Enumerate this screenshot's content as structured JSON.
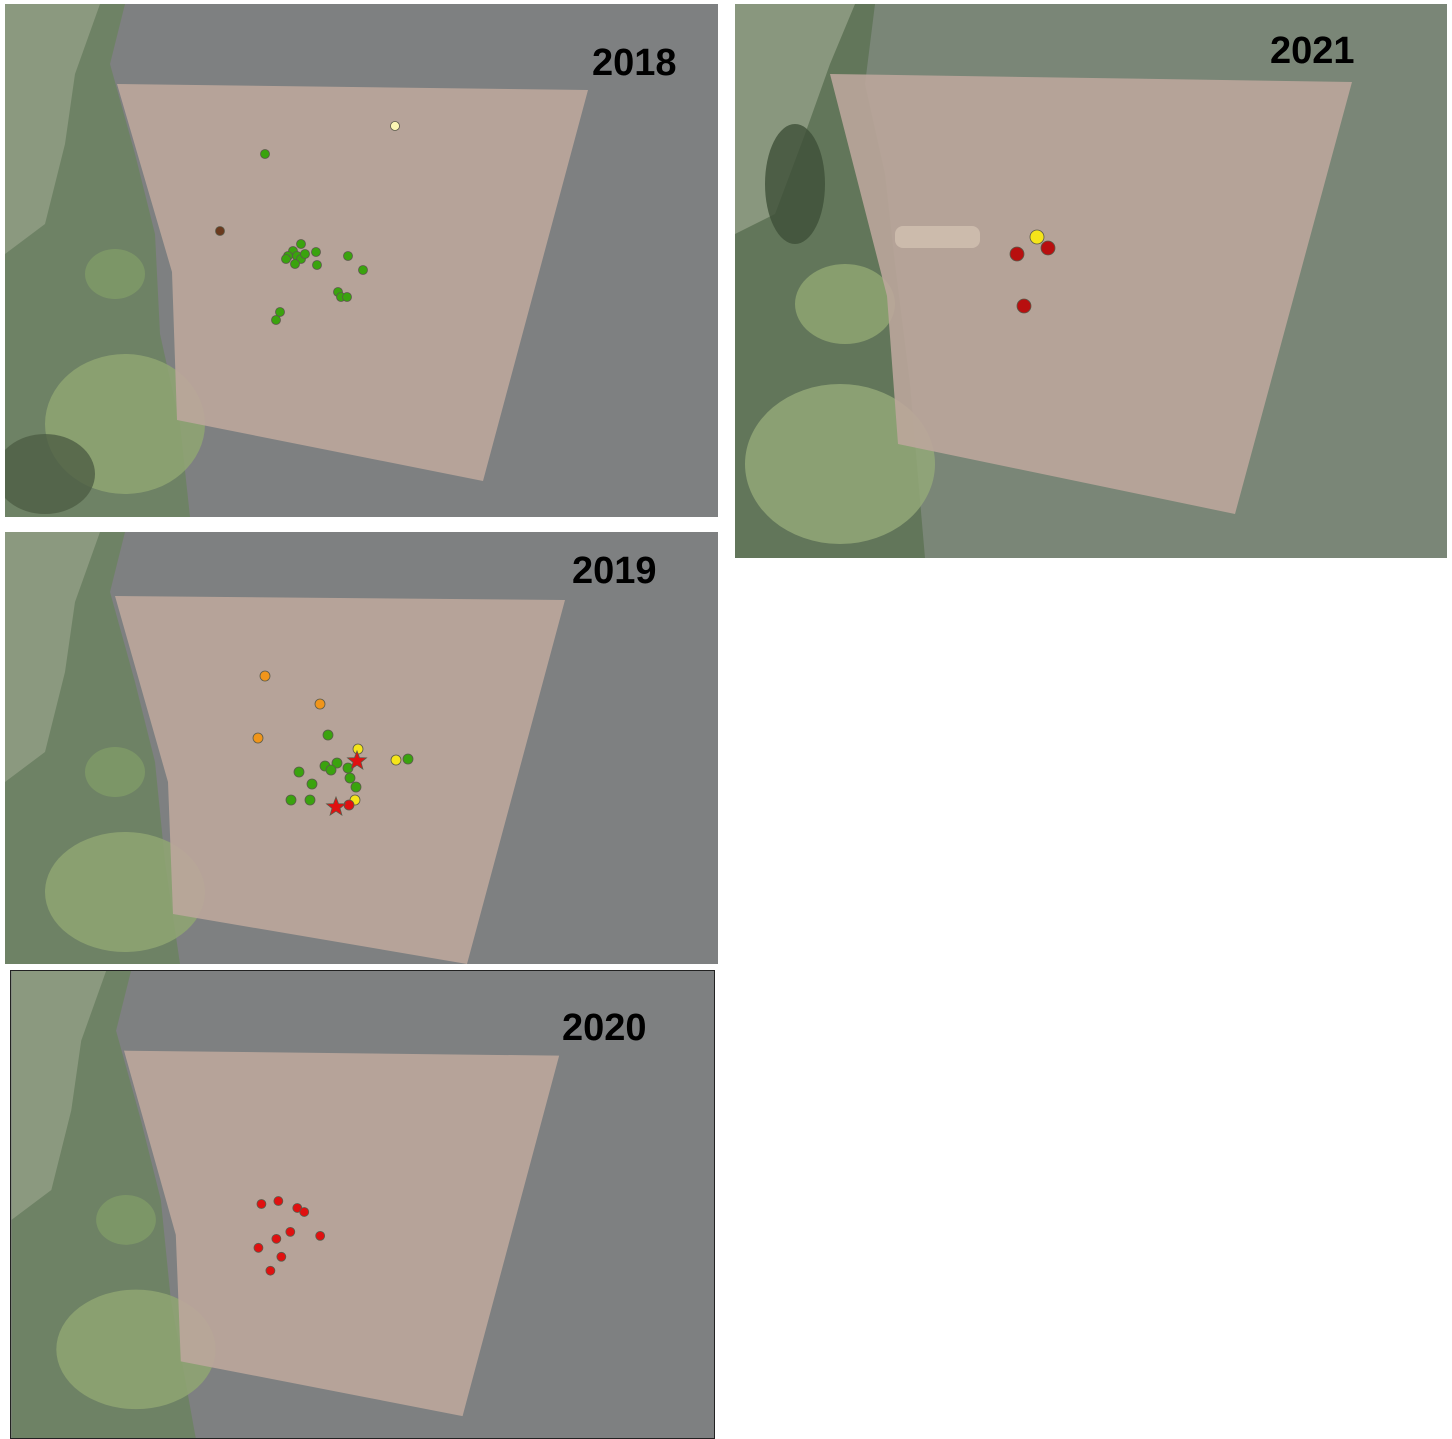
{
  "panels": [
    {
      "id": "p2018",
      "year": "2018",
      "points": [
        {
          "color": "#3aa30e",
          "kind": "circle"
        },
        {
          "color": "#fbf6b4",
          "kind": "circle"
        },
        {
          "color": "#6a3a1e",
          "kind": "circle"
        },
        {
          "color": "#3aa30e",
          "kind": "circle"
        },
        {
          "color": "#3aa30e",
          "kind": "circle"
        },
        {
          "color": "#3aa30e",
          "kind": "circle"
        },
        {
          "color": "#3aa30e",
          "kind": "circle"
        },
        {
          "color": "#3aa30e",
          "kind": "circle"
        },
        {
          "color": "#3aa30e",
          "kind": "circle"
        },
        {
          "color": "#3aa30e",
          "kind": "circle"
        },
        {
          "color": "#3aa30e",
          "kind": "circle"
        },
        {
          "color": "#3aa30e",
          "kind": "circle"
        },
        {
          "color": "#3aa30e",
          "kind": "circle"
        },
        {
          "color": "#3aa30e",
          "kind": "circle"
        },
        {
          "color": "#3aa30e",
          "kind": "circle"
        },
        {
          "color": "#3aa30e",
          "kind": "circle"
        },
        {
          "color": "#3aa30e",
          "kind": "circle"
        },
        {
          "color": "#3aa30e",
          "kind": "circle"
        },
        {
          "color": "#3aa30e",
          "kind": "circle"
        },
        {
          "color": "#3aa30e",
          "kind": "circle"
        }
      ]
    },
    {
      "id": "p2019",
      "year": "2019",
      "points": [
        {
          "color": "#f0951a",
          "kind": "circle"
        },
        {
          "color": "#f0951a",
          "kind": "circle"
        },
        {
          "color": "#f0951a",
          "kind": "circle"
        },
        {
          "color": "#3aa30e",
          "kind": "circle"
        },
        {
          "color": "#3aa30e",
          "kind": "circle"
        },
        {
          "color": "#3aa30e",
          "kind": "circle"
        },
        {
          "color": "#3aa30e",
          "kind": "circle"
        },
        {
          "color": "#3aa30e",
          "kind": "circle"
        },
        {
          "color": "#3aa30e",
          "kind": "circle"
        },
        {
          "color": "#3aa30e",
          "kind": "circle"
        },
        {
          "color": "#3aa30e",
          "kind": "circle"
        },
        {
          "color": "#3aa30e",
          "kind": "circle"
        },
        {
          "color": "#3aa30e",
          "kind": "circle"
        },
        {
          "color": "#3aa30e",
          "kind": "circle"
        },
        {
          "color": "#3aa30e",
          "kind": "circle"
        },
        {
          "color": "#f5e51a",
          "kind": "circle"
        },
        {
          "color": "#f5e51a",
          "kind": "circle"
        },
        {
          "color": "#f5e51a",
          "kind": "circle"
        },
        {
          "color": "#e01010",
          "kind": "circle"
        },
        {
          "color": "#e01010",
          "kind": "star"
        },
        {
          "color": "#e01010",
          "kind": "star"
        }
      ]
    },
    {
      "id": "p2020",
      "year": "2020",
      "points": [
        {
          "color": "#e01010",
          "kind": "circle"
        },
        {
          "color": "#e01010",
          "kind": "circle"
        },
        {
          "color": "#e01010",
          "kind": "circle"
        },
        {
          "color": "#e01010",
          "kind": "circle"
        },
        {
          "color": "#e01010",
          "kind": "circle"
        },
        {
          "color": "#e01010",
          "kind": "circle"
        },
        {
          "color": "#e01010",
          "kind": "circle"
        },
        {
          "color": "#e01010",
          "kind": "circle"
        },
        {
          "color": "#e01010",
          "kind": "circle"
        },
        {
          "color": "#e01010",
          "kind": "circle"
        }
      ]
    },
    {
      "id": "p2021",
      "year": "2021",
      "points": [
        {
          "color": "#f5e51a",
          "kind": "circle"
        },
        {
          "color": "#b80f0f",
          "kind": "circle"
        },
        {
          "color": "#b80f0f",
          "kind": "circle"
        },
        {
          "color": "#b80f0f",
          "kind": "circle"
        }
      ]
    }
  ]
}
